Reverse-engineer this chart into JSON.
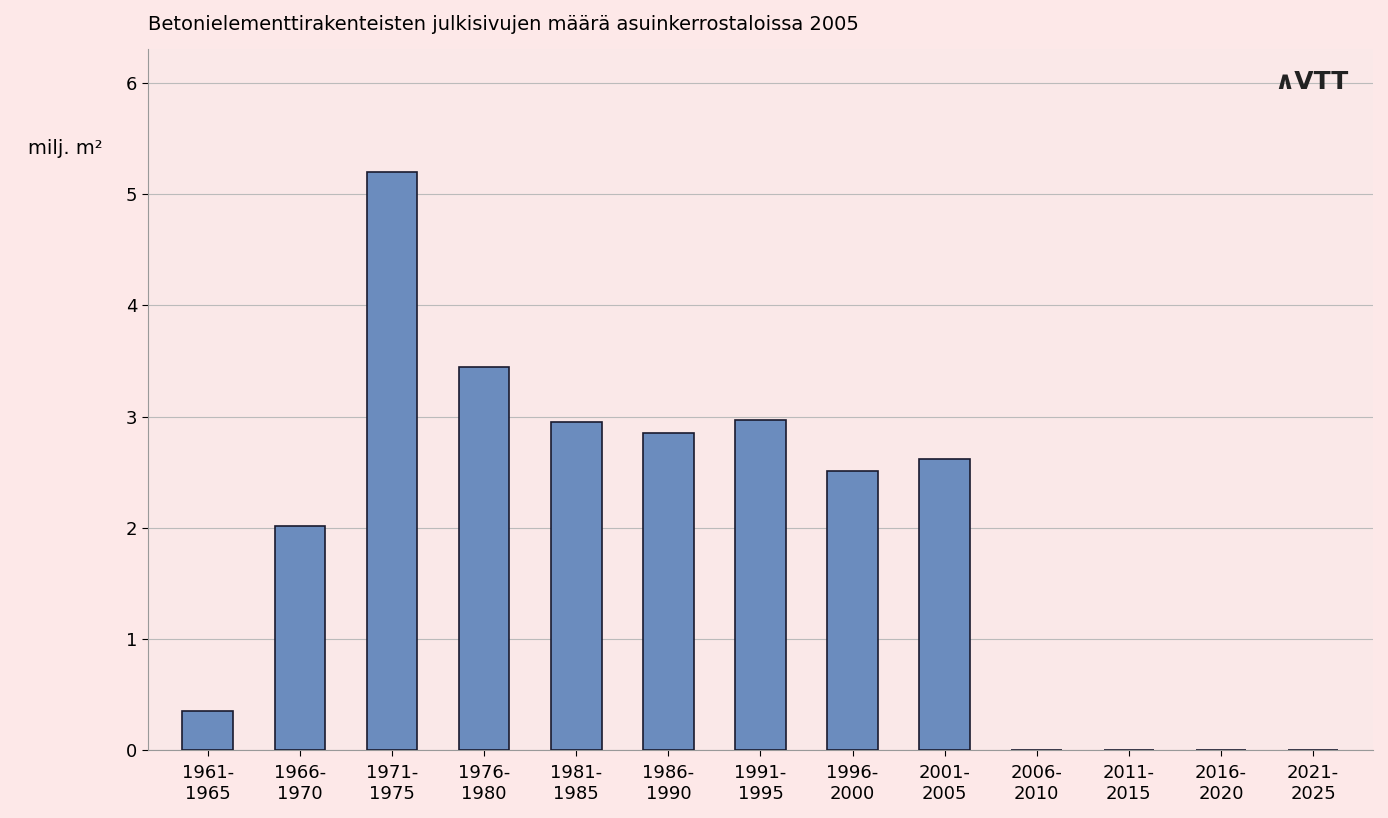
{
  "title": "Betonielementtirakenteisten julkisivujen määrä asuinkerrostaloissa 2005",
  "ylabel_line1": "milj. m",
  "ylabel_sup": "2",
  "categories": [
    "1961-\n1965",
    "1966-\n1970",
    "1971-\n1975",
    "1976-\n1980",
    "1981-\n1985",
    "1986-\n1990",
    "1991-\n1995",
    "1996-\n2000",
    "2001-\n2005",
    "2006-\n2010",
    "2011-\n2015",
    "2016-\n2020",
    "2021-\n2025"
  ],
  "values": [
    0.35,
    2.02,
    5.2,
    3.45,
    2.95,
    2.85,
    2.97,
    2.51,
    2.62,
    0,
    0,
    0,
    0
  ],
  "bar_color": "#6B8CBE",
  "bar_edgecolor": "#1a1a2e",
  "background_color": "#FDE8E8",
  "plot_bg_color": "#FAE8E8",
  "ylim": [
    0,
    6.3
  ],
  "yticks": [
    0,
    1,
    2,
    3,
    4,
    5,
    6
  ],
  "grid_color": "#BBBBBB",
  "title_fontsize": 14,
  "ylabel_fontsize": 14,
  "tick_fontsize": 13
}
